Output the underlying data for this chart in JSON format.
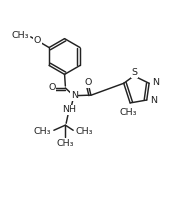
{
  "bg_color": "#ffffff",
  "line_color": "#222222",
  "line_width": 1.05,
  "font_size": 6.8,
  "figsize": [
    1.93,
    2.12
  ],
  "dpi": 100,
  "xlim": [
    -1,
    11
  ],
  "ylim": [
    -1,
    11
  ]
}
